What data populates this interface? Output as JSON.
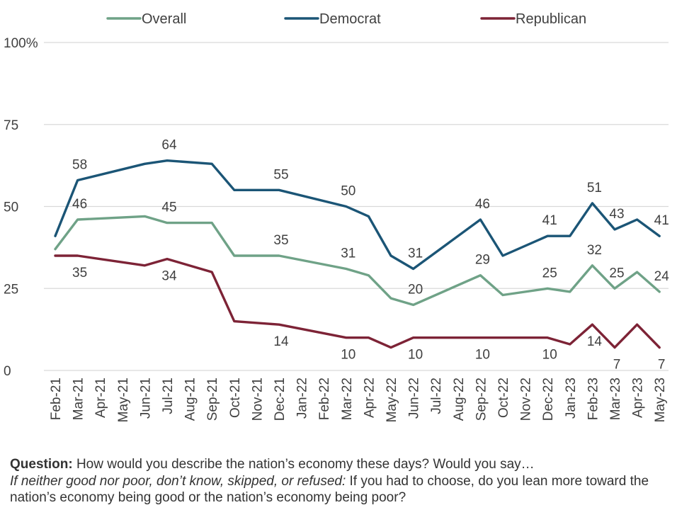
{
  "chart_data": {
    "type": "line",
    "x": [
      "Feb-21",
      "Mar-21",
      "Apr-21",
      "May-21",
      "Jun-21",
      "Jul-21",
      "Aug-21",
      "Sep-21",
      "Oct-21",
      "Nov-21",
      "Dec-21",
      "Jan-22",
      "Feb-22",
      "Mar-22",
      "Apr-22",
      "May-22",
      "Jun-22",
      "Jul-22",
      "Aug-22",
      "Sep-22",
      "Oct-22",
      "Nov-22",
      "Dec-22",
      "Jan-23",
      "Feb-23",
      "Mar-23",
      "Apr-23",
      "May-23"
    ],
    "yticks": [
      "0",
      "25",
      "50",
      "75",
      "100%"
    ],
    "ylim": [
      0,
      100
    ],
    "grid": true,
    "legend_position": "top",
    "series": [
      {
        "name": "Overall",
        "color": "#6fa287",
        "values": [
          37,
          46,
          null,
          null,
          47,
          45,
          null,
          45,
          35,
          null,
          35,
          null,
          null,
          31,
          29,
          22,
          20,
          null,
          null,
          29,
          23,
          null,
          25,
          24,
          32,
          25,
          30,
          24
        ],
        "labels": {
          "1": "46",
          "5": "45",
          "10": "35",
          "13": "31",
          "16": "20",
          "19": "29",
          "22": "25",
          "24": "32",
          "25": "25",
          "27": "24"
        }
      },
      {
        "name": "Democrat",
        "color": "#1b5576",
        "values": [
          41,
          58,
          null,
          null,
          63,
          64,
          null,
          63,
          55,
          null,
          55,
          null,
          null,
          50,
          47,
          35,
          31,
          null,
          null,
          46,
          35,
          null,
          41,
          41,
          51,
          43,
          46,
          41
        ],
        "labels": {
          "1": "58",
          "5": "64",
          "10": "55",
          "13": "50",
          "16": "31",
          "19": "46",
          "22": "41",
          "24": "51",
          "25": "43",
          "27": "41"
        }
      },
      {
        "name": "Republican",
        "color": "#7d2336",
        "values": [
          35,
          35,
          null,
          null,
          32,
          34,
          null,
          30,
          15,
          null,
          14,
          null,
          null,
          10,
          10,
          7,
          10,
          null,
          null,
          10,
          10,
          null,
          10,
          8,
          14,
          7,
          14,
          7
        ],
        "labels": {
          "1": "35",
          "5": "34",
          "10": "14",
          "13": "10",
          "16": "10",
          "19": "10",
          "22": "10",
          "24": "14",
          "25": "7",
          "27": "7"
        }
      }
    ]
  },
  "note": {
    "line1_bold": "Question:",
    "line1_text": " How would you describe the nation’s economy these days? Would you say…",
    "line2_italic": "If neither good nor poor, don’t know, skipped, or refused:",
    "line2_text": " If you had to choose, do you lean more toward the nation’s economy being good or the nation’s economy being poor?"
  }
}
